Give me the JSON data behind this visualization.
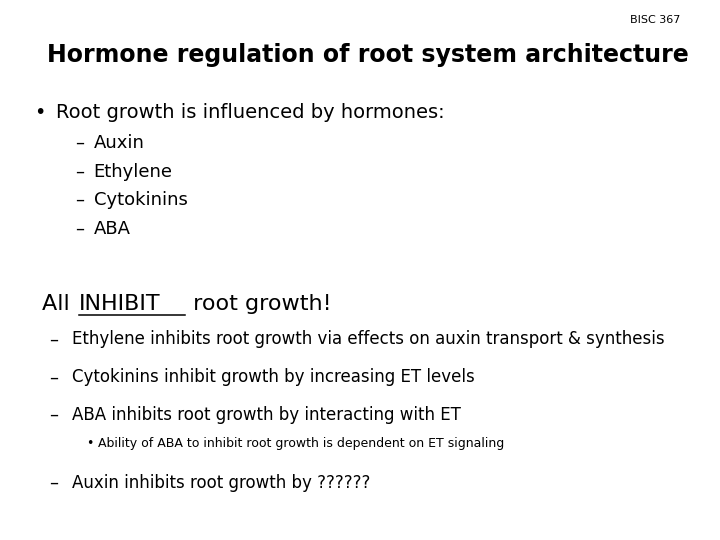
{
  "bg_color": "#ffffff",
  "text_color": "#000000",
  "slide_label": "BISC 367",
  "title": "Hormone regulation of root system architecture",
  "bullet1": "Root growth is influenced by hormones:",
  "sub_bullets1": [
    "Auxin",
    "Ethylene",
    "Cytokinins",
    "ABA"
  ],
  "heading2_pre": "All ",
  "heading2_underline": "INHIBIT",
  "heading2_post": " root growth!",
  "sub_bullets2": [
    "Ethylene inhibits root growth via effects on auxin transport & synthesis",
    "Cytokinins inhibit growth by increasing ET levels",
    "ABA inhibits root growth by interacting with ET"
  ],
  "sub_sub_bullet": "Ability of ABA to inhibit root growth is dependent on ET signaling",
  "sub_bullet3": "Auxin inhibits root growth by ??????"
}
